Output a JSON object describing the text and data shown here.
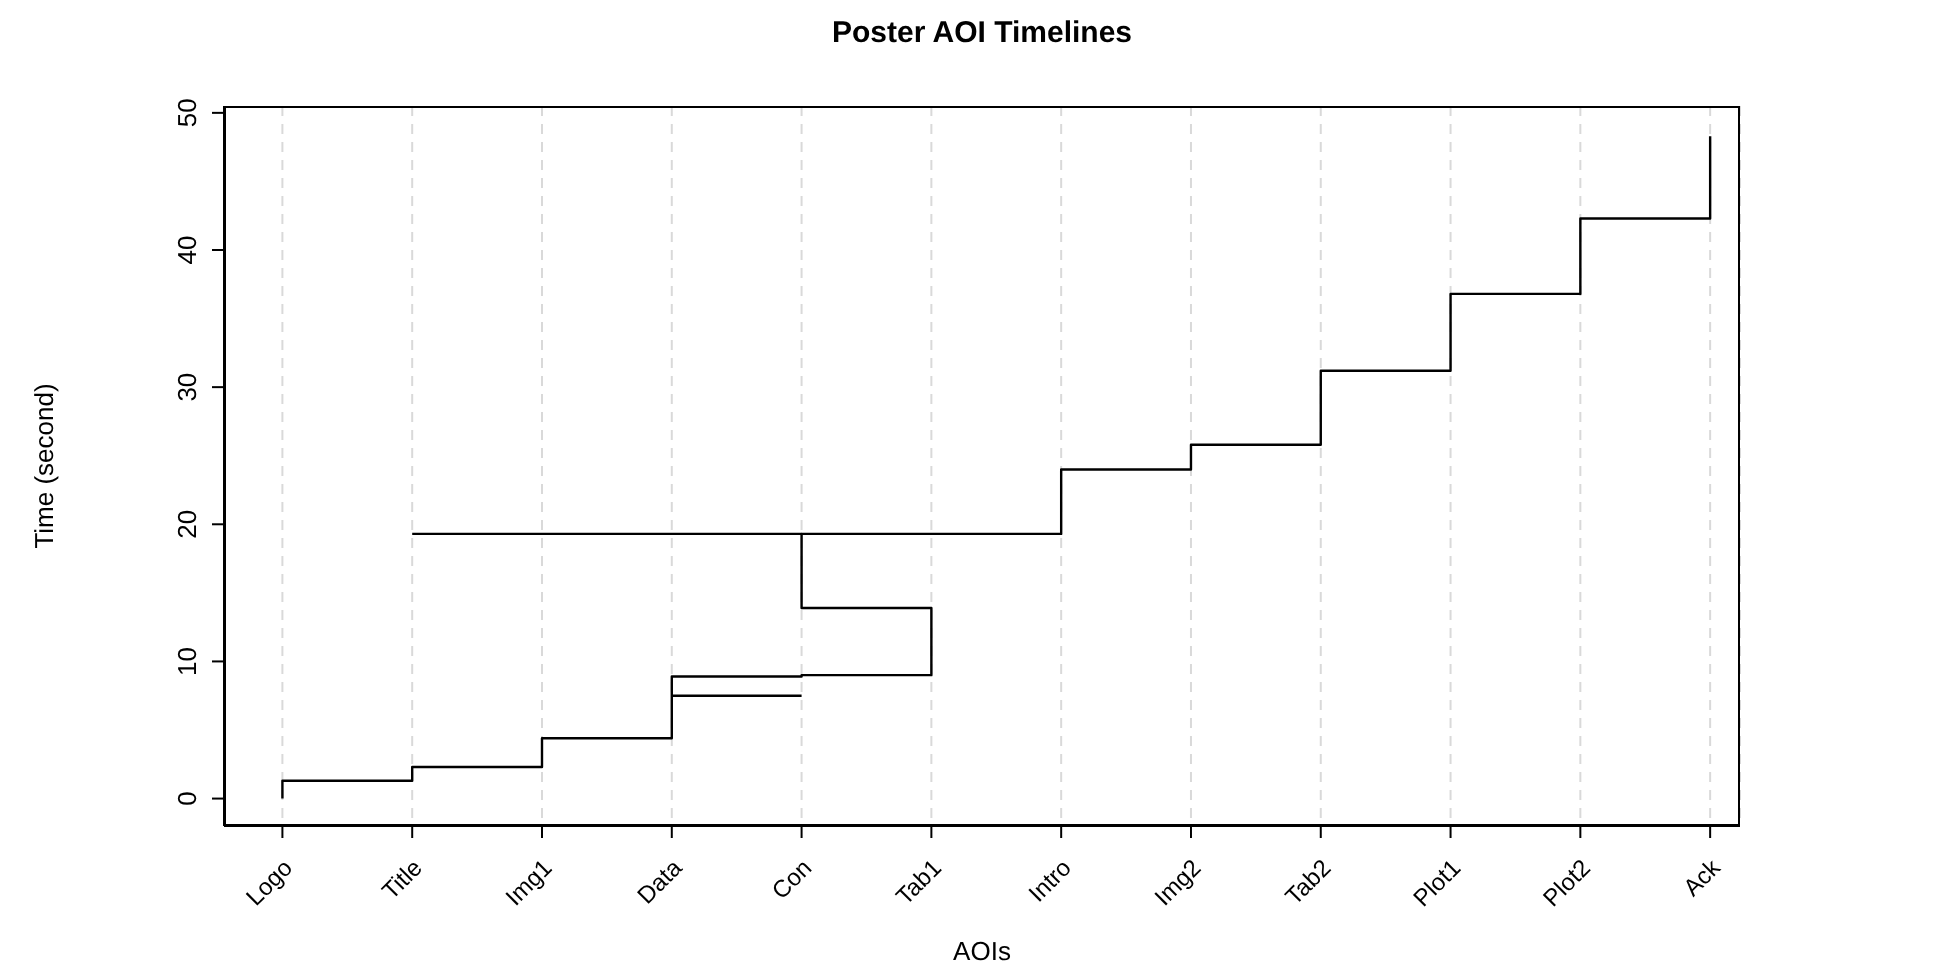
{
  "chart_data": {
    "type": "step",
    "title": "Poster AOI Timelines",
    "xlabel": "AOIs",
    "ylabel": "Time (second)",
    "categories": [
      "Logo",
      "Title",
      "Img1",
      "Data",
      "Con",
      "Tab1",
      "Intro",
      "Img2",
      "Tab2",
      "Plot1",
      "Plot2",
      "Ack"
    ],
    "series": [
      {
        "color": "#000000",
        "x": [
          "Logo",
          "Logo",
          "Title",
          "Img1",
          "Data",
          "Con",
          "Tab1",
          "Con",
          "Intro",
          "Img2",
          "Tab2",
          "Plot1",
          "Plot2",
          "Ack"
        ],
        "values": [
          0,
          1.3,
          2.3,
          4.4,
          8.9,
          9.0,
          13.9,
          19.3,
          24.0,
          25.8,
          31.2,
          36.8,
          42.3,
          48.3
        ]
      },
      {
        "color": "#000000",
        "x": [
          "Title",
          "Con"
        ],
        "values": [
          19.3,
          19.3
        ]
      },
      {
        "color": "#000000",
        "x": [
          "Data",
          "Con"
        ],
        "values": [
          7.5,
          7.5
        ]
      }
    ],
    "ylim": [
      -2,
      50.5
    ],
    "yticks": [
      0,
      10,
      20,
      30,
      40,
      50
    ],
    "grid": "x"
  }
}
